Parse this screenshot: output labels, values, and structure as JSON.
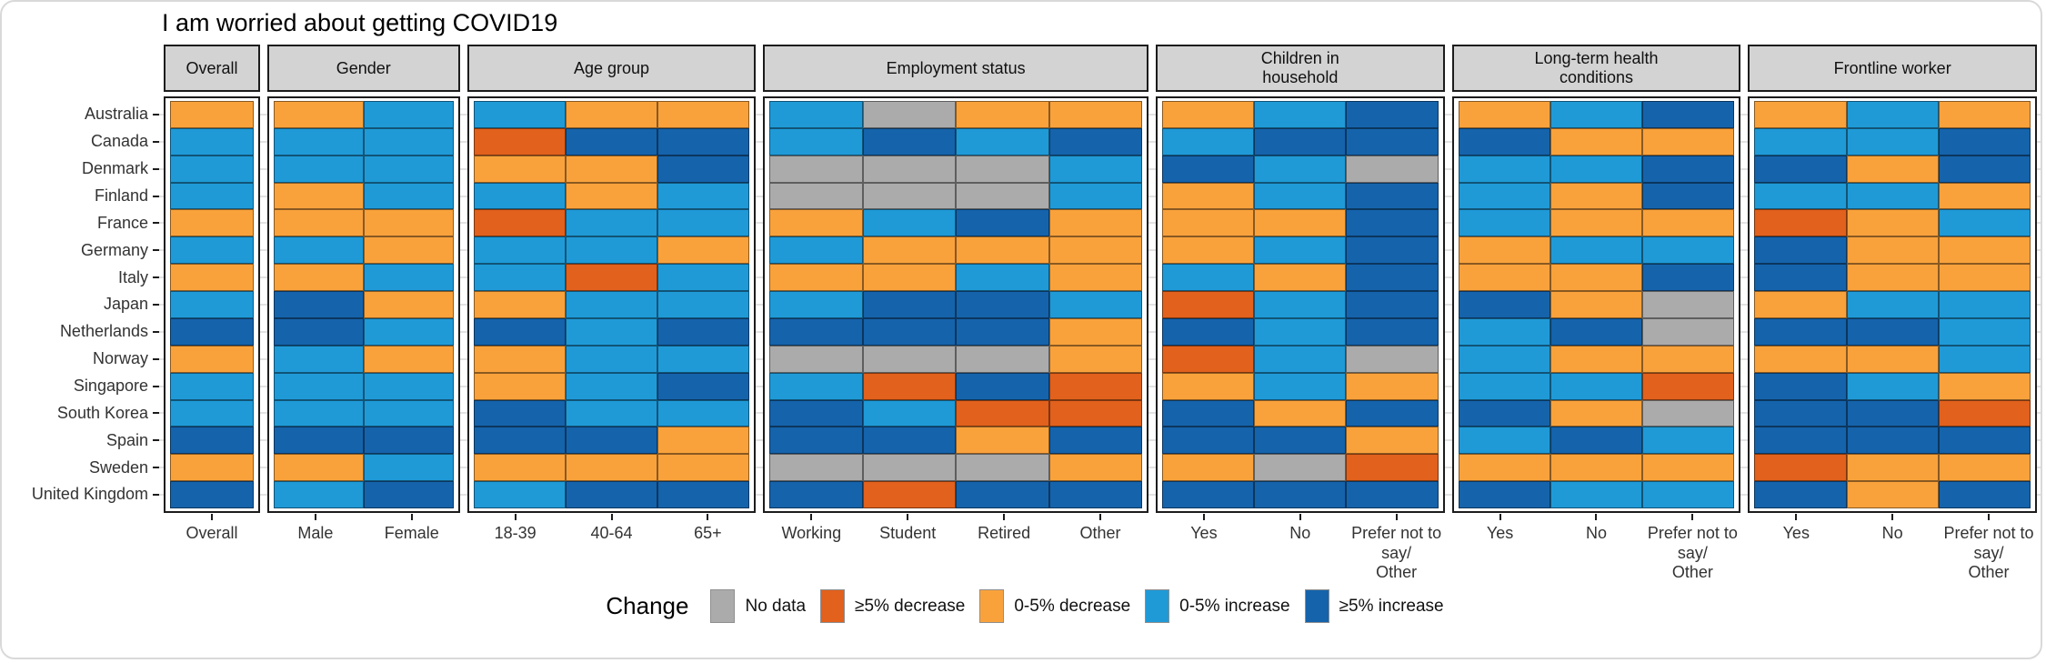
{
  "title": "I am worried about getting COVID19",
  "colors": {
    "nd": "#ABABAB",
    "d5": "#E1611D",
    "d0": "#F9A23C",
    "i0": "#1F9AD7",
    "i5": "#1563AB",
    "strip_bg": "#D3D3D3",
    "panel_border": "#1C1C1C"
  },
  "legend": {
    "label": "Change",
    "items": [
      {
        "key": "nd",
        "label": "No data"
      },
      {
        "key": "d5",
        "label": "≥5% decrease"
      },
      {
        "key": "d0",
        "label": "0-5% decrease"
      },
      {
        "key": "i0",
        "label": "0-5% increase"
      },
      {
        "key": "i5",
        "label": "≥5% increase"
      }
    ]
  },
  "chart_data": {
    "type": "heatmap",
    "title": "I am worried about getting COVID19",
    "legend_title": "Change",
    "code_meaning": {
      "nd": "No data",
      "d5": "≥5% decrease",
      "d0": "0-5% decrease",
      "i0": "0-5% increase",
      "i5": "≥5% increase"
    },
    "rows": [
      "Australia",
      "Canada",
      "Denmark",
      "Finland",
      "France",
      "Germany",
      "Italy",
      "Japan",
      "Netherlands",
      "Norway",
      "Singapore",
      "South Korea",
      "Spain",
      "Sweden",
      "United Kingdom"
    ],
    "facets": [
      {
        "label": "Overall",
        "columns": [
          "Overall"
        ],
        "values": [
          [
            "d0"
          ],
          [
            "i0"
          ],
          [
            "i0"
          ],
          [
            "i0"
          ],
          [
            "d0"
          ],
          [
            "i0"
          ],
          [
            "d0"
          ],
          [
            "i0"
          ],
          [
            "i5"
          ],
          [
            "d0"
          ],
          [
            "i0"
          ],
          [
            "i0"
          ],
          [
            "i5"
          ],
          [
            "d0"
          ],
          [
            "i5"
          ]
        ]
      },
      {
        "label": "Gender",
        "columns": [
          "Male",
          "Female"
        ],
        "values": [
          [
            "d0",
            "i0"
          ],
          [
            "i0",
            "i0"
          ],
          [
            "i0",
            "i0"
          ],
          [
            "d0",
            "i0"
          ],
          [
            "d0",
            "d0"
          ],
          [
            "i0",
            "d0"
          ],
          [
            "d0",
            "i0"
          ],
          [
            "i5",
            "d0"
          ],
          [
            "i5",
            "i0"
          ],
          [
            "i0",
            "d0"
          ],
          [
            "i0",
            "i0"
          ],
          [
            "i0",
            "i0"
          ],
          [
            "i5",
            "i5"
          ],
          [
            "d0",
            "i0"
          ],
          [
            "i0",
            "i5"
          ]
        ]
      },
      {
        "label": "Age group",
        "columns": [
          "18-39",
          "40-64",
          "65+"
        ],
        "values": [
          [
            "i0",
            "d0",
            "d0"
          ],
          [
            "d5",
            "i5",
            "i5"
          ],
          [
            "d0",
            "d0",
            "i5"
          ],
          [
            "i0",
            "d0",
            "i0"
          ],
          [
            "d5",
            "i0",
            "i0"
          ],
          [
            "i0",
            "i0",
            "d0"
          ],
          [
            "i0",
            "d5",
            "i0"
          ],
          [
            "d0",
            "i0",
            "i0"
          ],
          [
            "i5",
            "i0",
            "i5"
          ],
          [
            "d0",
            "i0",
            "i0"
          ],
          [
            "d0",
            "i0",
            "i5"
          ],
          [
            "i5",
            "i0",
            "i0"
          ],
          [
            "i5",
            "i5",
            "d0"
          ],
          [
            "d0",
            "d0",
            "d0"
          ],
          [
            "i0",
            "i5",
            "i5"
          ]
        ]
      },
      {
        "label": "Employment status",
        "columns": [
          "Working",
          "Student",
          "Retired",
          "Other"
        ],
        "values": [
          [
            "i0",
            "nd",
            "d0",
            "d0"
          ],
          [
            "i0",
            "i5",
            "i0",
            "i5"
          ],
          [
            "nd",
            "nd",
            "nd",
            "i0"
          ],
          [
            "nd",
            "nd",
            "nd",
            "i0"
          ],
          [
            "d0",
            "i0",
            "i5",
            "d0"
          ],
          [
            "i0",
            "d0",
            "d0",
            "d0"
          ],
          [
            "d0",
            "d0",
            "i0",
            "d0"
          ],
          [
            "i0",
            "i5",
            "i5",
            "i0"
          ],
          [
            "i5",
            "i5",
            "i5",
            "d0"
          ],
          [
            "nd",
            "nd",
            "nd",
            "d0"
          ],
          [
            "i0",
            "d5",
            "i5",
            "d5"
          ],
          [
            "i5",
            "i0",
            "d5",
            "d5"
          ],
          [
            "i5",
            "i5",
            "d0",
            "i5"
          ],
          [
            "nd",
            "nd",
            "nd",
            "d0"
          ],
          [
            "i5",
            "d5",
            "i5",
            "i5"
          ]
        ]
      },
      {
        "label": "Children in\nhousehold",
        "columns": [
          "Yes",
          "No",
          "Prefer not to say/\nOther"
        ],
        "values": [
          [
            "d0",
            "i0",
            "i5"
          ],
          [
            "i0",
            "i5",
            "i5"
          ],
          [
            "i5",
            "i0",
            "nd"
          ],
          [
            "d0",
            "i0",
            "i5"
          ],
          [
            "d0",
            "d0",
            "i5"
          ],
          [
            "d0",
            "i0",
            "i5"
          ],
          [
            "i0",
            "d0",
            "i5"
          ],
          [
            "d5",
            "i0",
            "i5"
          ],
          [
            "i5",
            "i0",
            "i5"
          ],
          [
            "d5",
            "i0",
            "nd"
          ],
          [
            "d0",
            "i0",
            "d0"
          ],
          [
            "i5",
            "d0",
            "i5"
          ],
          [
            "i5",
            "i5",
            "d0"
          ],
          [
            "d0",
            "nd",
            "d5"
          ],
          [
            "i5",
            "i5",
            "i5"
          ]
        ]
      },
      {
        "label": "Long-term health\nconditions",
        "columns": [
          "Yes",
          "No",
          "Prefer not to say/\nOther"
        ],
        "values": [
          [
            "d0",
            "i0",
            "i5"
          ],
          [
            "i5",
            "d0",
            "d0"
          ],
          [
            "i0",
            "i0",
            "i5"
          ],
          [
            "i0",
            "d0",
            "i5"
          ],
          [
            "i0",
            "d0",
            "d0"
          ],
          [
            "d0",
            "i0",
            "i0"
          ],
          [
            "d0",
            "d0",
            "i5"
          ],
          [
            "i5",
            "d0",
            "nd"
          ],
          [
            "i0",
            "i5",
            "nd"
          ],
          [
            "i0",
            "d0",
            "d0"
          ],
          [
            "i0",
            "i0",
            "d5"
          ],
          [
            "i5",
            "d0",
            "nd"
          ],
          [
            "i0",
            "i5",
            "i0"
          ],
          [
            "d0",
            "d0",
            "d0"
          ],
          [
            "i5",
            "i0",
            "i0"
          ]
        ]
      },
      {
        "label": "Frontline worker",
        "columns": [
          "Yes",
          "No",
          "Prefer not to say/\nOther"
        ],
        "values": [
          [
            "d0",
            "i0",
            "d0"
          ],
          [
            "i0",
            "i0",
            "i5"
          ],
          [
            "i5",
            "d0",
            "i5"
          ],
          [
            "i0",
            "i0",
            "d0"
          ],
          [
            "d5",
            "d0",
            "i0"
          ],
          [
            "i5",
            "d0",
            "d0"
          ],
          [
            "i5",
            "d0",
            "d0"
          ],
          [
            "d0",
            "i0",
            "i0"
          ],
          [
            "i5",
            "i5",
            "i0"
          ],
          [
            "d0",
            "d0",
            "i0"
          ],
          [
            "i5",
            "i0",
            "d0"
          ],
          [
            "i5",
            "i5",
            "d5"
          ],
          [
            "i5",
            "i5",
            "i5"
          ],
          [
            "d5",
            "d0",
            "d0"
          ],
          [
            "i5",
            "d0",
            "i5"
          ]
        ]
      }
    ]
  }
}
